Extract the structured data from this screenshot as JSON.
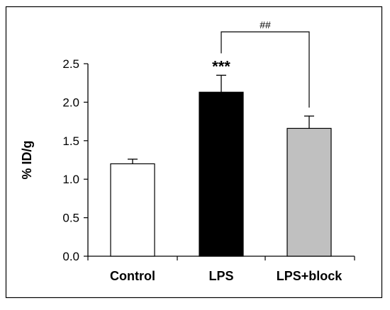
{
  "chart_data": {
    "type": "bar",
    "title": "",
    "xlabel": "",
    "ylabel": "% ID/g",
    "ylim": [
      0,
      2.5
    ],
    "yticks": [
      "0.0",
      "0.5",
      "1.0",
      "1.5",
      "2.0",
      "2.5"
    ],
    "categories": [
      "Control",
      "LPS",
      "LPS+block"
    ],
    "values": [
      1.2,
      2.13,
      1.66
    ],
    "error": [
      0.06,
      0.22,
      0.16
    ],
    "bar_fill_colors": [
      "#ffffff",
      "#000000",
      "#c0c0c0"
    ],
    "bar_edge_color": "#000000",
    "grid": false,
    "legend": "none",
    "annotations": [
      {
        "text": "***",
        "category": "LPS"
      },
      {
        "text": "##",
        "between": [
          "LPS",
          "LPS+block"
        ]
      }
    ]
  }
}
